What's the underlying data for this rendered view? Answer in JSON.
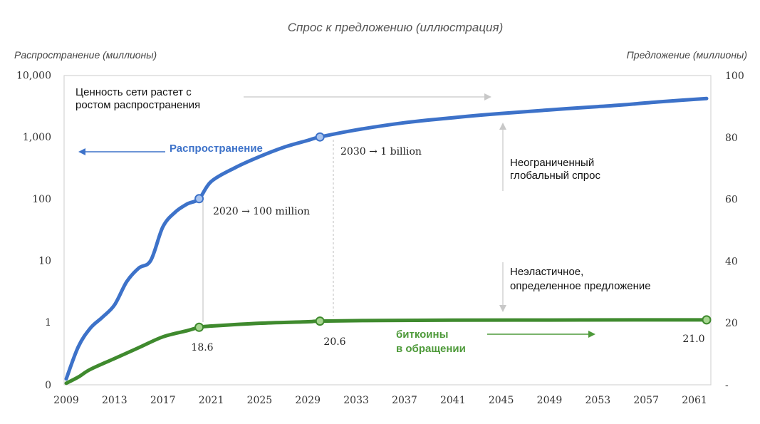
{
  "chart_data": {
    "type": "line",
    "title": "Спрос к предложению (иллюстрация)",
    "y_left_label": "Распространение (миллионы)",
    "y_right_label": "Предложение (миллионы)",
    "y_left_scale": "log",
    "y_left_ticks": [
      "10,000",
      "1,000",
      "100",
      "10",
      "1",
      "0"
    ],
    "y_right_ticks": [
      "100",
      "80",
      "60",
      "40",
      "20",
      "-"
    ],
    "y_right_range": [
      0,
      100
    ],
    "x_ticks": [
      "2009",
      "2013",
      "2017",
      "2021",
      "2025",
      "2029",
      "2033",
      "2037",
      "2041",
      "2045",
      "2049",
      "2053",
      "2057",
      "2061"
    ],
    "x_range": [
      2009,
      2062
    ],
    "grid": false,
    "series": [
      {
        "name": "Распространение",
        "axis": "left",
        "color": "#3d72c9",
        "x": [
          2009,
          2010,
          2011,
          2012,
          2013,
          2014,
          2015,
          2016,
          2017,
          2018,
          2019,
          2020,
          2021,
          2023,
          2025,
          2027,
          2029,
          2030,
          2033,
          2037,
          2041,
          2045,
          2049,
          2053,
          2055,
          2058,
          2062
        ],
        "y": [
          0.12,
          0.4,
          0.8,
          1.2,
          1.9,
          4.5,
          7.5,
          10,
          35,
          60,
          82,
          100,
          190,
          320,
          480,
          680,
          880,
          1000,
          1300,
          1700,
          2050,
          2400,
          2750,
          3100,
          3300,
          3700,
          4200
        ]
      },
      {
        "name": "биткоины в обращении",
        "axis": "right",
        "color": "#4e9a3a",
        "x": [
          2009,
          2010,
          2011,
          2013,
          2015,
          2017,
          2019,
          2020,
          2021,
          2025,
          2029,
          2030,
          2035,
          2041,
          2049,
          2057,
          2062
        ],
        "y": [
          0.5,
          2.5,
          5,
          8.5,
          12,
          15.5,
          17.5,
          18.6,
          19.0,
          19.9,
          20.4,
          20.6,
          20.8,
          20.9,
          20.95,
          21.0,
          21.0
        ]
      }
    ],
    "markers": [
      {
        "series": 0,
        "x": 2020,
        "y": 100
      },
      {
        "series": 0,
        "x": 2030,
        "y": 1000
      },
      {
        "series": 1,
        "x": 2020,
        "y": 18.6
      },
      {
        "series": 1,
        "x": 2030,
        "y": 20.6
      },
      {
        "series": 1,
        "x": 2062,
        "y": 21.0
      }
    ],
    "annotations": {
      "network_value_1": "Ценность сети растет с",
      "network_value_2": "ростом распространения",
      "adoption_label": "Распространение",
      "point_2030": "2030 → 1 billion",
      "point_2020": "2020 → 100 million",
      "demand_1": "Неограниченный",
      "demand_2": "глобальный спрос",
      "supply_1": "Неэластичное,",
      "supply_2": "определенное предложение",
      "supply_label_1": "биткоины",
      "supply_label_2": "в обращении",
      "val_186": "18.6",
      "val_206": "20.6",
      "val_210": "21.0"
    }
  }
}
